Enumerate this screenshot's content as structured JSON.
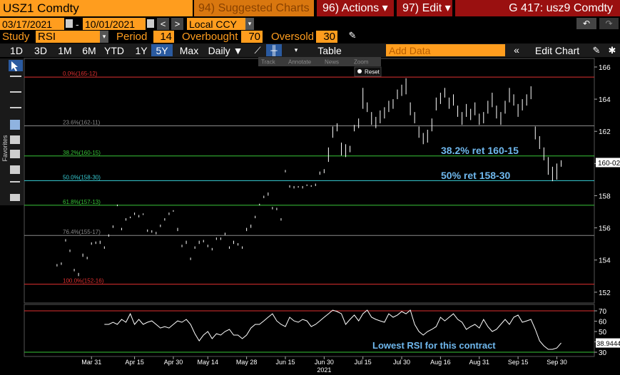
{
  "toolbar": {
    "ticker": "USZ1 Comdty",
    "suggested": "94) Suggested Charts",
    "actions": "96) Actions ▾",
    "edit": "97) Edit ▾",
    "function": "G 417: usz9 Comdty"
  },
  "range": {
    "start": "03/17/2021",
    "sep": "-",
    "end": "10/01/2021",
    "currency": "Local CCY"
  },
  "study": {
    "label": "Study",
    "name": "RSI",
    "period_label": "Period",
    "period": 14,
    "overbought_label": "Overbought",
    "overbought": 70,
    "oversold_label": "Oversold",
    "oversold": 30
  },
  "periods": [
    "1D",
    "3D",
    "1M",
    "6M",
    "YTD",
    "1Y",
    "5Y",
    "Max"
  ],
  "selected_period": "5Y",
  "frequency": "Daily ▼",
  "table": "Table",
  "add_data": "Add Data",
  "edit_chart": "Edit Chart",
  "mini_tools": [
    "Track",
    "Annotate",
    "News",
    "Zoom"
  ],
  "reset": "Reset",
  "side": "Favorites",
  "chart_data": [
    {
      "type": "hilo",
      "color": "#ffffff",
      "xlim": [
        -7.6,
        124.7
      ],
      "ylim": [
        151.33,
        166.53
      ],
      "yticks": [
        152,
        154,
        156,
        158,
        160,
        162,
        164,
        166
      ],
      "xticks": [
        {
          "value": 8,
          "label": "Mar 31"
        },
        {
          "value": 18,
          "label": "Apr 15"
        },
        {
          "value": 27,
          "label": "Apr 30"
        },
        {
          "value": 35,
          "label": "May 14"
        },
        {
          "value": 44,
          "label": "May 28"
        },
        {
          "value": 53,
          "label": "Jun 15"
        },
        {
          "value": 62,
          "label": "Jun 30"
        },
        {
          "value": 71,
          "label": "Jul 15"
        },
        {
          "value": 80,
          "label": "Jul 30"
        },
        {
          "value": 89,
          "label": "Aug 16"
        },
        {
          "value": 98,
          "label": "Aug 31"
        },
        {
          "value": 107,
          "label": "Sep 15"
        },
        {
          "value": 116,
          "label": "Sep 30"
        }
      ],
      "year": {
        "value": 62,
        "label": "2021"
      },
      "last": {
        "value": 160.0625,
        "label": "160-02"
      },
      "levels": [
        {
          "value": 165.375,
          "label": "0.0%(165-12)",
          "color": "#e03030"
        },
        {
          "value": 162.344,
          "label": "23.6%(162-11)",
          "color": "#8a8a8a"
        },
        {
          "value": 160.469,
          "label": "38.2%(160-15)",
          "color": "#39c639"
        },
        {
          "value": 158.9375,
          "label": "50.0%(158-30)",
          "color": "#38d0d8"
        },
        {
          "value": 157.406,
          "label": "61.8%(157-13)",
          "color": "#39c639"
        },
        {
          "value": 155.53,
          "label": "76.4%(155-17)",
          "color": "#8a8a8a"
        },
        {
          "value": 152.5,
          "label": "100.0%(152-16)",
          "color": "#e03030"
        }
      ],
      "annotations": [
        "38.2% ret 160-15",
        "50% ret 158-30"
      ],
      "high": [
        153.75,
        153.85,
        155.3,
        154.65,
        153.45,
        153.2,
        154.4,
        154.2,
        155.1,
        155.15,
        155.2,
        154.85,
        155.6,
        156.15,
        157.45,
        156.0,
        156.6,
        156.7,
        156.95,
        156.8,
        156.9,
        155.9,
        155.85,
        155.75,
        156.2,
        156.6,
        156.95,
        157.1,
        156.0,
        154.95,
        155.2,
        154.15,
        154.85,
        155.2,
        155.25,
        154.95,
        154.75,
        155.4,
        155.4,
        155.7,
        154.85,
        155.2,
        155.05,
        154.85,
        156.0,
        156.2,
        156.75,
        157.5,
        158.0,
        158.2,
        157.3,
        157.25,
        156.6,
        159.6,
        158.65,
        158.6,
        158.6,
        158.6,
        158.7,
        158.65,
        158.75,
        159.5,
        159.65,
        161.0,
        162.3,
        162.5,
        161.3,
        161.2,
        161.1,
        162.4,
        162.8,
        164.7,
        163.8,
        163.2,
        162.9,
        163.3,
        163.5,
        163.9,
        164.0,
        164.6,
        164.9,
        165.3,
        163.8,
        163.2,
        162.3,
        161.9,
        162.1,
        162.8,
        164.1,
        164.4,
        164.7,
        164.1,
        164.3,
        163.6,
        163.2,
        163.7,
        163.4,
        163.8,
        163.1,
        163.2,
        163.9,
        164.4,
        163.6,
        163.2,
        163.9,
        164.7,
        164.3,
        163.7,
        164.0,
        164.3,
        164.8,
        162.3,
        161.7,
        161.0,
        160.4,
        159.8,
        160.0,
        160.2
      ],
      "low": [
        153.6,
        153.7,
        155.15,
        154.5,
        153.3,
        153.0,
        154.2,
        154.05,
        154.95,
        155.0,
        155.0,
        154.7,
        155.45,
        156.0,
        157.35,
        155.85,
        156.45,
        156.6,
        156.8,
        156.65,
        156.8,
        155.75,
        155.7,
        155.6,
        156.05,
        156.45,
        156.8,
        157.0,
        155.8,
        154.8,
        155.0,
        154.0,
        154.7,
        155.0,
        155.1,
        154.8,
        154.6,
        155.25,
        155.25,
        155.55,
        154.7,
        155.0,
        154.9,
        154.7,
        155.8,
        156.0,
        156.6,
        157.4,
        157.85,
        158.0,
        157.15,
        157.1,
        156.45,
        159.45,
        158.5,
        158.45,
        158.5,
        158.45,
        158.6,
        158.55,
        158.6,
        159.3,
        159.4,
        160.1,
        161.6,
        162.0,
        160.5,
        160.4,
        160.7,
        162.0,
        162.2,
        163.4,
        163.2,
        162.4,
        162.2,
        162.5,
        162.8,
        163.2,
        163.4,
        164.0,
        164.2,
        164.3,
        163.0,
        162.5,
        161.6,
        161.2,
        161.3,
        162.0,
        163.3,
        163.7,
        164.1,
        163.4,
        163.6,
        162.9,
        162.4,
        162.9,
        162.7,
        163.0,
        162.4,
        162.5,
        163.1,
        163.5,
        162.8,
        162.4,
        163.1,
        163.8,
        163.6,
        162.9,
        163.3,
        163.6,
        164.0,
        161.5,
        160.9,
        160.2,
        159.3,
        158.9,
        159.0,
        159.8
      ]
    },
    {
      "type": "line",
      "color": "#ffffff",
      "xlim": [
        -7.6,
        124.7
      ],
      "ylim": [
        25.9,
        76.2
      ],
      "yticks": [
        30,
        40,
        50,
        60,
        70
      ],
      "last": 38.9444,
      "annotation": "Lowest RSI for this contract",
      "values": [
        null,
        null,
        null,
        null,
        null,
        null,
        null,
        null,
        null,
        null,
        null,
        56.9,
        56.9,
        59.0,
        56.9,
        61.7,
        59.0,
        67.2,
        56.9,
        61.7,
        56.9,
        59.0,
        60.3,
        56.9,
        53.4,
        54.8,
        53.4,
        56.9,
        60.3,
        59.0,
        61.7,
        56.9,
        47.9,
        41.0,
        46.6,
        50.0,
        43.1,
        47.9,
        46.6,
        50.0,
        52.1,
        46.6,
        46.6,
        43.1,
        46.6,
        53.4,
        56.9,
        56.9,
        60.3,
        63.8,
        67.2,
        60.3,
        56.9,
        54.8,
        63.8,
        60.3,
        59.0,
        61.7,
        60.3,
        54.8,
        56.9,
        60.3,
        63.8,
        67.2,
        70.7,
        69.3,
        67.2,
        56.9,
        61.7,
        65.9,
        60.3,
        67.2,
        70.7,
        63.8,
        61.7,
        60.3,
        59.0,
        67.2,
        63.8,
        65.9,
        69.3,
        67.2,
        70.7,
        56.9,
        50.0,
        46.6,
        50.0,
        52.1,
        54.8,
        63.8,
        60.3,
        63.8,
        67.2,
        61.7,
        59.0,
        52.1,
        54.8,
        56.9,
        53.4,
        61.7,
        54.8,
        50.0,
        52.1,
        56.9,
        61.7,
        56.9,
        63.8,
        65.9,
        59.0,
        60.3,
        61.7,
        52.1,
        41.0,
        36.2,
        32.8,
        32.8,
        34.1,
        38.9444
      ]
    }
  ]
}
